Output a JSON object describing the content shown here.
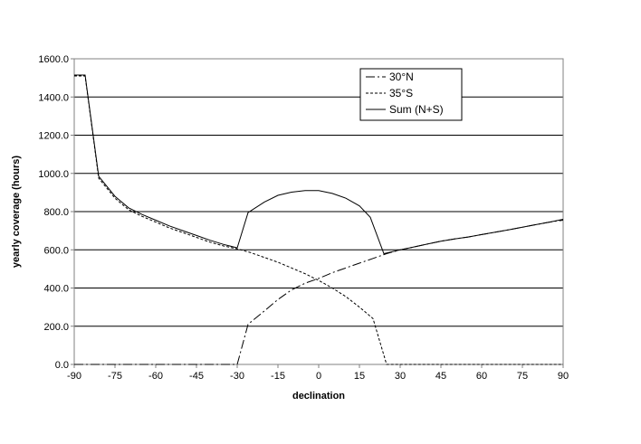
{
  "chart_data": {
    "type": "line",
    "title": "",
    "xlabel": "declination",
    "ylabel": "yearly coverage (hours)",
    "xlim": [
      -90,
      90
    ],
    "ylim": [
      0,
      1600
    ],
    "xticks": [
      "-90",
      "-75",
      "-60",
      "-45",
      "-30",
      "-15",
      "0",
      "15",
      "30",
      "45",
      "60",
      "75",
      "90"
    ],
    "yticks": [
      "0.0",
      "200.0",
      "400.0",
      "600.0",
      "800.0",
      "1000.0",
      "1200.0",
      "1400.0",
      "1600.0"
    ],
    "grid": "horizontal",
    "legend_position": "top-right",
    "series": [
      {
        "name": "30°N",
        "style": "dash-dot",
        "color": "#000000",
        "points": [
          [
            -90,
            0
          ],
          [
            -85,
            0
          ],
          [
            -80,
            0
          ],
          [
            -75,
            0
          ],
          [
            -70,
            0
          ],
          [
            -65,
            0
          ],
          [
            -60,
            0
          ],
          [
            -55,
            0
          ],
          [
            -50,
            0
          ],
          [
            -45,
            0
          ],
          [
            -40,
            0
          ],
          [
            -35,
            0
          ],
          [
            -30,
            0
          ],
          [
            -26,
            210
          ],
          [
            -20,
            280
          ],
          [
            -15,
            340
          ],
          [
            -10,
            390
          ],
          [
            -5,
            425
          ],
          [
            0,
            450
          ],
          [
            5,
            480
          ],
          [
            10,
            505
          ],
          [
            15,
            530
          ],
          [
            20,
            555
          ],
          [
            25,
            580
          ],
          [
            30,
            600
          ],
          [
            35,
            615
          ],
          [
            40,
            630
          ],
          [
            45,
            645
          ],
          [
            50,
            657
          ],
          [
            55,
            667
          ],
          [
            60,
            680
          ],
          [
            65,
            692
          ],
          [
            70,
            705
          ],
          [
            75,
            718
          ],
          [
            80,
            732
          ],
          [
            85,
            745
          ],
          [
            90,
            755
          ]
        ]
      },
      {
        "name": "35°S",
        "style": "dotted",
        "color": "#000000",
        "points": [
          [
            -90,
            1510
          ],
          [
            -86,
            1510
          ],
          [
            -81,
            975
          ],
          [
            -75,
            870
          ],
          [
            -70,
            810
          ],
          [
            -65,
            775
          ],
          [
            -60,
            745
          ],
          [
            -55,
            715
          ],
          [
            -50,
            690
          ],
          [
            -45,
            665
          ],
          [
            -40,
            640
          ],
          [
            -35,
            620
          ],
          [
            -30,
            605
          ],
          [
            -25,
            585
          ],
          [
            -20,
            560
          ],
          [
            -15,
            535
          ],
          [
            -10,
            505
          ],
          [
            -5,
            475
          ],
          [
            0,
            440
          ],
          [
            5,
            400
          ],
          [
            10,
            355
          ],
          [
            15,
            300
          ],
          [
            20,
            240
          ],
          [
            25,
            0
          ],
          [
            30,
            0
          ],
          [
            35,
            0
          ],
          [
            40,
            0
          ],
          [
            45,
            0
          ],
          [
            50,
            0
          ],
          [
            55,
            0
          ],
          [
            60,
            0
          ],
          [
            65,
            0
          ],
          [
            70,
            0
          ],
          [
            75,
            0
          ],
          [
            80,
            0
          ],
          [
            85,
            0
          ],
          [
            90,
            0
          ]
        ]
      },
      {
        "name": "Sum (N+S)",
        "style": "solid",
        "color": "#000000",
        "points": [
          [
            -90,
            1515
          ],
          [
            -86,
            1515
          ],
          [
            -81,
            985
          ],
          [
            -75,
            880
          ],
          [
            -70,
            820
          ],
          [
            -65,
            785
          ],
          [
            -60,
            755
          ],
          [
            -55,
            725
          ],
          [
            -50,
            700
          ],
          [
            -45,
            675
          ],
          [
            -40,
            650
          ],
          [
            -35,
            628
          ],
          [
            -30,
            610
          ],
          [
            -26,
            795
          ],
          [
            -20,
            850
          ],
          [
            -15,
            885
          ],
          [
            -10,
            902
          ],
          [
            -5,
            910
          ],
          [
            0,
            910
          ],
          [
            5,
            895
          ],
          [
            10,
            870
          ],
          [
            15,
            830
          ],
          [
            19,
            770
          ],
          [
            24,
            580
          ],
          [
            30,
            600
          ],
          [
            35,
            615
          ],
          [
            40,
            630
          ],
          [
            45,
            645
          ],
          [
            50,
            657
          ],
          [
            55,
            667
          ],
          [
            60,
            680
          ],
          [
            65,
            692
          ],
          [
            70,
            705
          ],
          [
            75,
            718
          ],
          [
            80,
            732
          ],
          [
            85,
            745
          ],
          [
            90,
            760
          ]
        ]
      }
    ]
  }
}
